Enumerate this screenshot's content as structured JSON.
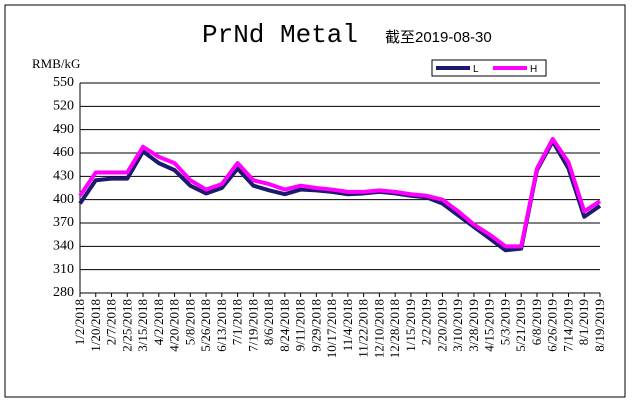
{
  "chart_data": {
    "type": "line",
    "title": "PrNd Metal",
    "subtitle": "截至2019-08-30",
    "y_label": "RMB/kG",
    "categories": [
      "1/2/2018",
      "1/20/2018",
      "2/7/2018",
      "2/25/2018",
      "3/15/2018",
      "4/2/2018",
      "4/20/2018",
      "5/8/2018",
      "5/26/2018",
      "6/13/2018",
      "7/1/2018",
      "7/19/2018",
      "8/6/2018",
      "8/24/2018",
      "9/11/2018",
      "9/29/2018",
      "10/17/2018",
      "11/4/2018",
      "11/22/2018",
      "12/10/2018",
      "12/28/2018",
      "1/15/2019",
      "2/2/2019",
      "2/20/2019",
      "3/10/2019",
      "3/28/2019",
      "4/15/2019",
      "5/3/2019",
      "5/21/2019",
      "6/8/2019",
      "6/26/2019",
      "7/14/2019",
      "8/1/2019",
      "8/19/2019"
    ],
    "series": [
      {
        "name": "L",
        "color": "#1a1a6e",
        "values": [
          395,
          425,
          427,
          427,
          462,
          447,
          438,
          418,
          408,
          415,
          440,
          418,
          412,
          407,
          413,
          412,
          410,
          407,
          408,
          410,
          408,
          405,
          403,
          395,
          380,
          365,
          350,
          335,
          337,
          438,
          475,
          440,
          378,
          392
        ]
      },
      {
        "name": "H",
        "color": "#ff00ff",
        "values": [
          405,
          435,
          435,
          435,
          468,
          455,
          447,
          425,
          413,
          420,
          447,
          425,
          420,
          413,
          418,
          415,
          413,
          410,
          410,
          412,
          410,
          407,
          405,
          400,
          385,
          368,
          355,
          340,
          340,
          440,
          478,
          448,
          385,
          398
        ]
      }
    ],
    "ylim": [
      280,
      550
    ],
    "yticks": [
      280,
      310,
      340,
      370,
      400,
      430,
      460,
      490,
      520,
      550
    ],
    "grid": true,
    "legend": "top-right"
  }
}
